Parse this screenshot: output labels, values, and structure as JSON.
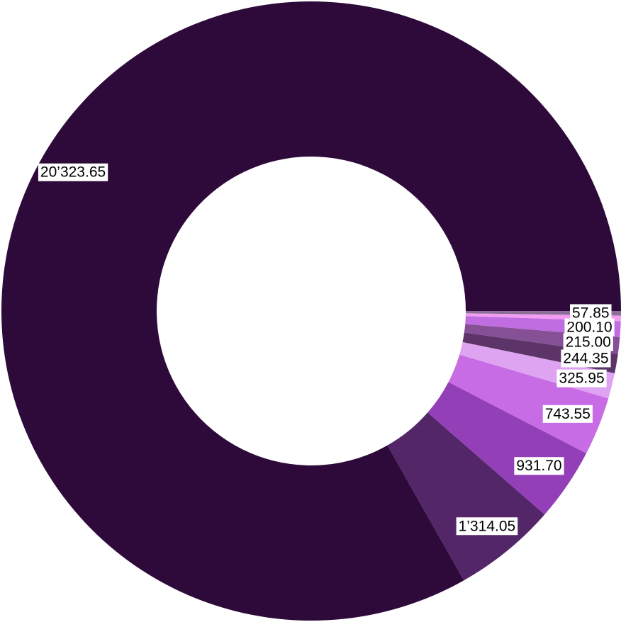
{
  "chart_data": {
    "type": "pie",
    "style": "donut",
    "start": "3 o'clock",
    "direction": "counterclockwise",
    "title": "",
    "legend": "none",
    "slices": [
      {
        "value": 20323.65,
        "label": "20’323.65",
        "color": "#2e0a3a"
      },
      {
        "value": 1314.05,
        "label": "1’314.05",
        "color": "#532668"
      },
      {
        "value": 931.7,
        "label": "931.70",
        "color": "#9340b8"
      },
      {
        "value": 743.55,
        "label": "743.55",
        "color": "#c86ce6"
      },
      {
        "value": 325.95,
        "label": "325.95",
        "color": "#dea4f2"
      },
      {
        "value": 244.35,
        "label": "244.35",
        "color": "#5c3468"
      },
      {
        "value": 215.0,
        "label": "215.00",
        "color": "#865096"
      },
      {
        "value": 200.1,
        "label": "200.10",
        "color": "#bf6de0"
      },
      {
        "value": 70.0,
        "label": "",
        "color": "#f29cf2"
      },
      {
        "value": 57.85,
        "label": "57.85",
        "color": "#8a6f96"
      }
    ]
  }
}
